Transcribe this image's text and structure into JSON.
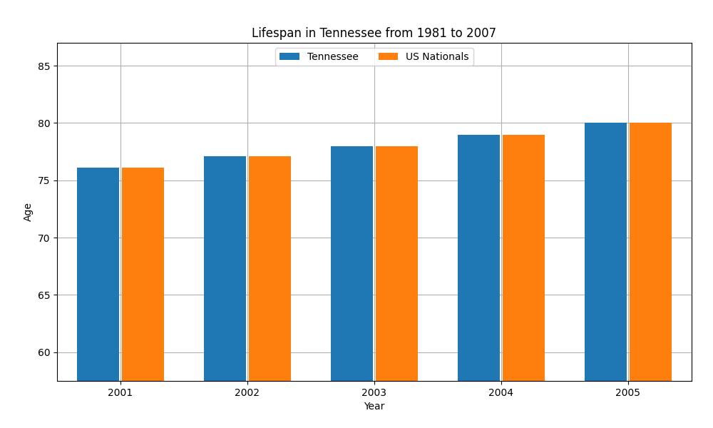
{
  "chart_data": {
    "type": "bar",
    "title": "Lifespan in Tennessee from 1981 to 2007",
    "x_label": "Year",
    "y_label": "Age",
    "categories": [
      "2001",
      "2002",
      "2003",
      "2004",
      "2005"
    ],
    "series": [
      {
        "name": "Tennessee",
        "values": [
          76.1,
          77.1,
          78.0,
          79.0,
          80.0
        ]
      },
      {
        "name": "US Nationals",
        "values": [
          76.1,
          77.1,
          78.0,
          79.0,
          80.0
        ]
      }
    ],
    "ylim": [
      57.5,
      87
    ],
    "yticks": [
      60,
      65,
      70,
      75,
      80,
      85
    ],
    "grid": true,
    "legend": "upper center"
  }
}
